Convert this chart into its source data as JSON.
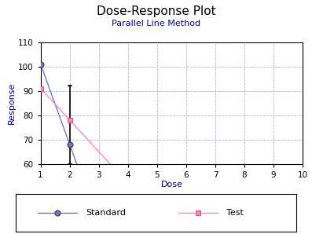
{
  "title": "Dose-Response Plot",
  "subtitle": "Parallel Line Method",
  "xlabel": "Dose",
  "ylabel": "Response",
  "xlim": [
    1,
    10
  ],
  "ylim": [
    60,
    110
  ],
  "xticks": [
    1,
    2,
    3,
    4,
    5,
    6,
    7,
    8,
    9,
    10
  ],
  "yticks": [
    60,
    70,
    80,
    90,
    100,
    110
  ],
  "standard": {
    "x": [
      1,
      2
    ],
    "y": [
      101,
      68
    ],
    "color": "#7777aa",
    "marker": "o",
    "marker_size": 5,
    "label": "Standard",
    "errorbar_x": 2,
    "errorbar_y": 68,
    "errorbar_low": 60,
    "errorbar_high": 92
  },
  "test": {
    "x": [
      1,
      2
    ],
    "y": [
      91,
      78
    ],
    "color": "#ff88bb",
    "marker": "s",
    "marker_size": 5,
    "label": "Test"
  },
  "bg_color": "#ffffff",
  "plot_bg_color": "#ffffff",
  "grid_color": "#aaaacc",
  "title_color": "#000000",
  "subtitle_color": "#0000aa",
  "axis_label_color": "#000080",
  "tick_label_color": "#000000",
  "legend_bg": "#ffffff",
  "legend_border": "#000000"
}
